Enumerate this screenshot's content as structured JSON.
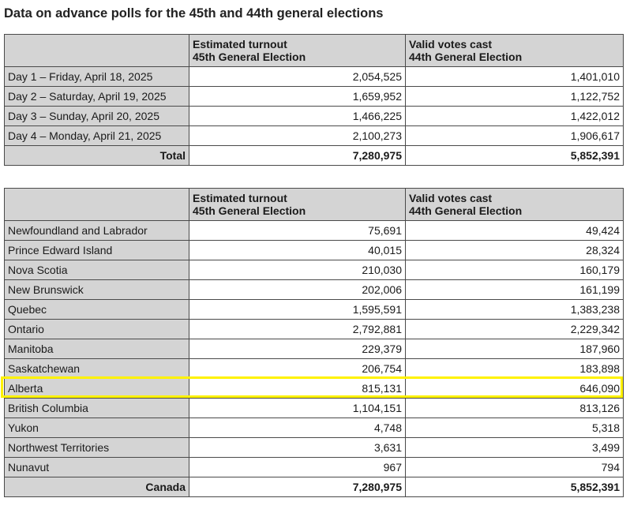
{
  "title": "Data on advance polls for the 45th and 44th general elections",
  "columns": {
    "estimated": [
      "Estimated turnout",
      "45th General Election"
    ],
    "valid": [
      "Valid votes cast",
      "44th General Election"
    ]
  },
  "days_table": {
    "rows": [
      {
        "label": "Day 1 – Friday, April 18, 2025",
        "estimated": "2,054,525",
        "valid": "1,401,010"
      },
      {
        "label": "Day 2 – Saturday, April 19, 2025",
        "estimated": "1,659,952",
        "valid": "1,122,752"
      },
      {
        "label": "Day 3 – Sunday, April 20, 2025",
        "estimated": "1,466,225",
        "valid": "1,422,012"
      },
      {
        "label": "Day 4 – Monday, April 21, 2025",
        "estimated": "2,100,273",
        "valid": "1,906,617"
      }
    ],
    "total": {
      "label": "Total",
      "estimated": "7,280,975",
      "valid": "5,852,391"
    }
  },
  "province_table": {
    "rows": [
      {
        "label": "Newfoundland and Labrador",
        "estimated": "75,691",
        "valid": "49,424"
      },
      {
        "label": "Prince Edward Island",
        "estimated": "40,015",
        "valid": "28,324"
      },
      {
        "label": "Nova Scotia",
        "estimated": "210,030",
        "valid": "160,179"
      },
      {
        "label": "New Brunswick",
        "estimated": "202,006",
        "valid": "161,199"
      },
      {
        "label": "Quebec",
        "estimated": "1,595,591",
        "valid": "1,383,238"
      },
      {
        "label": "Ontario",
        "estimated": "2,792,881",
        "valid": "2,229,342"
      },
      {
        "label": "Manitoba",
        "estimated": "229,379",
        "valid": "187,960"
      },
      {
        "label": "Saskatchewan",
        "estimated": "206,754",
        "valid": "183,898"
      },
      {
        "label": "Alberta",
        "estimated": "815,131",
        "valid": "646,090"
      },
      {
        "label": "British Columbia",
        "estimated": "1,104,151",
        "valid": "813,126"
      },
      {
        "label": "Yukon",
        "estimated": "4,748",
        "valid": "5,318"
      },
      {
        "label": "Northwest Territories",
        "estimated": "3,631",
        "valid": "3,499"
      },
      {
        "label": "Nunavut",
        "estimated": "967",
        "valid": "794"
      }
    ],
    "total": {
      "label": "Canada",
      "estimated": "7,280,975",
      "valid": "5,852,391"
    }
  },
  "highlight": {
    "row": "Alberta",
    "color": "#fff200"
  },
  "colors": {
    "header_bg": "#d4d4d4",
    "border": "#4a4a4a"
  }
}
